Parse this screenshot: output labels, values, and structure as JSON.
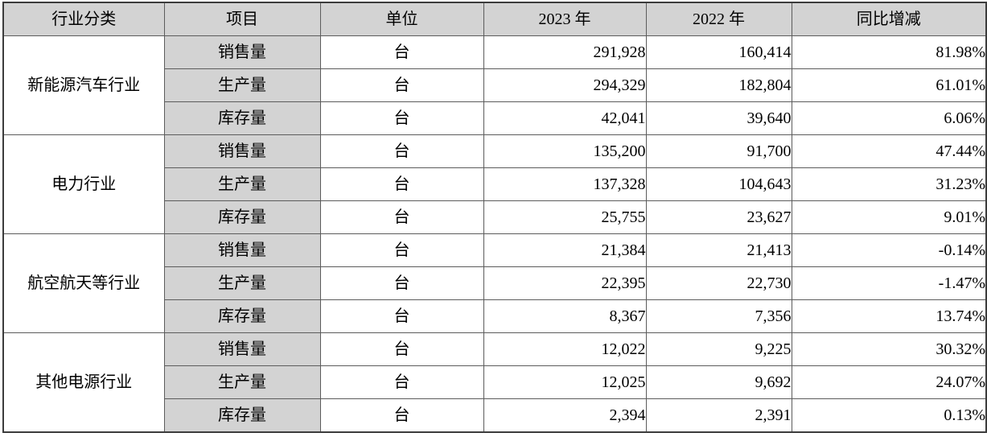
{
  "table": {
    "headers": [
      "行业分类",
      "项目",
      "单位",
      "2023 年",
      "2022 年",
      "同比增减"
    ],
    "groups": [
      {
        "industry": "新能源汽车行业",
        "rows": [
          {
            "item": "销售量",
            "unit": "台",
            "y2023": "291,928",
            "y2022": "160,414",
            "yoy": "81.98%"
          },
          {
            "item": "生产量",
            "unit": "台",
            "y2023": "294,329",
            "y2022": "182,804",
            "yoy": "61.01%"
          },
          {
            "item": "库存量",
            "unit": "台",
            "y2023": "42,041",
            "y2022": "39,640",
            "yoy": "6.06%"
          }
        ]
      },
      {
        "industry": "电力行业",
        "rows": [
          {
            "item": "销售量",
            "unit": "台",
            "y2023": "135,200",
            "y2022": "91,700",
            "yoy": "47.44%"
          },
          {
            "item": "生产量",
            "unit": "台",
            "y2023": "137,328",
            "y2022": "104,643",
            "yoy": "31.23%"
          },
          {
            "item": "库存量",
            "unit": "台",
            "y2023": "25,755",
            "y2022": "23,627",
            "yoy": "9.01%"
          }
        ]
      },
      {
        "industry": "航空航天等行业",
        "rows": [
          {
            "item": "销售量",
            "unit": "台",
            "y2023": "21,384",
            "y2022": "21,413",
            "yoy": "-0.14%"
          },
          {
            "item": "生产量",
            "unit": "台",
            "y2023": "22,395",
            "y2022": "22,730",
            "yoy": "-1.47%"
          },
          {
            "item": "库存量",
            "unit": "台",
            "y2023": "8,367",
            "y2022": "7,356",
            "yoy": "13.74%"
          }
        ]
      },
      {
        "industry": "其他电源行业",
        "rows": [
          {
            "item": "销售量",
            "unit": "台",
            "y2023": "12,022",
            "y2022": "9,225",
            "yoy": "30.32%"
          },
          {
            "item": "生产量",
            "unit": "台",
            "y2023": "12,025",
            "y2022": "9,692",
            "yoy": "24.07%"
          },
          {
            "item": "库存量",
            "unit": "台",
            "y2023": "2,394",
            "y2022": "2,391",
            "yoy": "0.13%"
          }
        ]
      }
    ]
  },
  "colors": {
    "header_bg": "#d3d3d3",
    "item_column_bg": "#d3d3d3",
    "inner_border": "#5c5c5c",
    "outer_border": "#3c3c3c",
    "text": "#000000"
  }
}
